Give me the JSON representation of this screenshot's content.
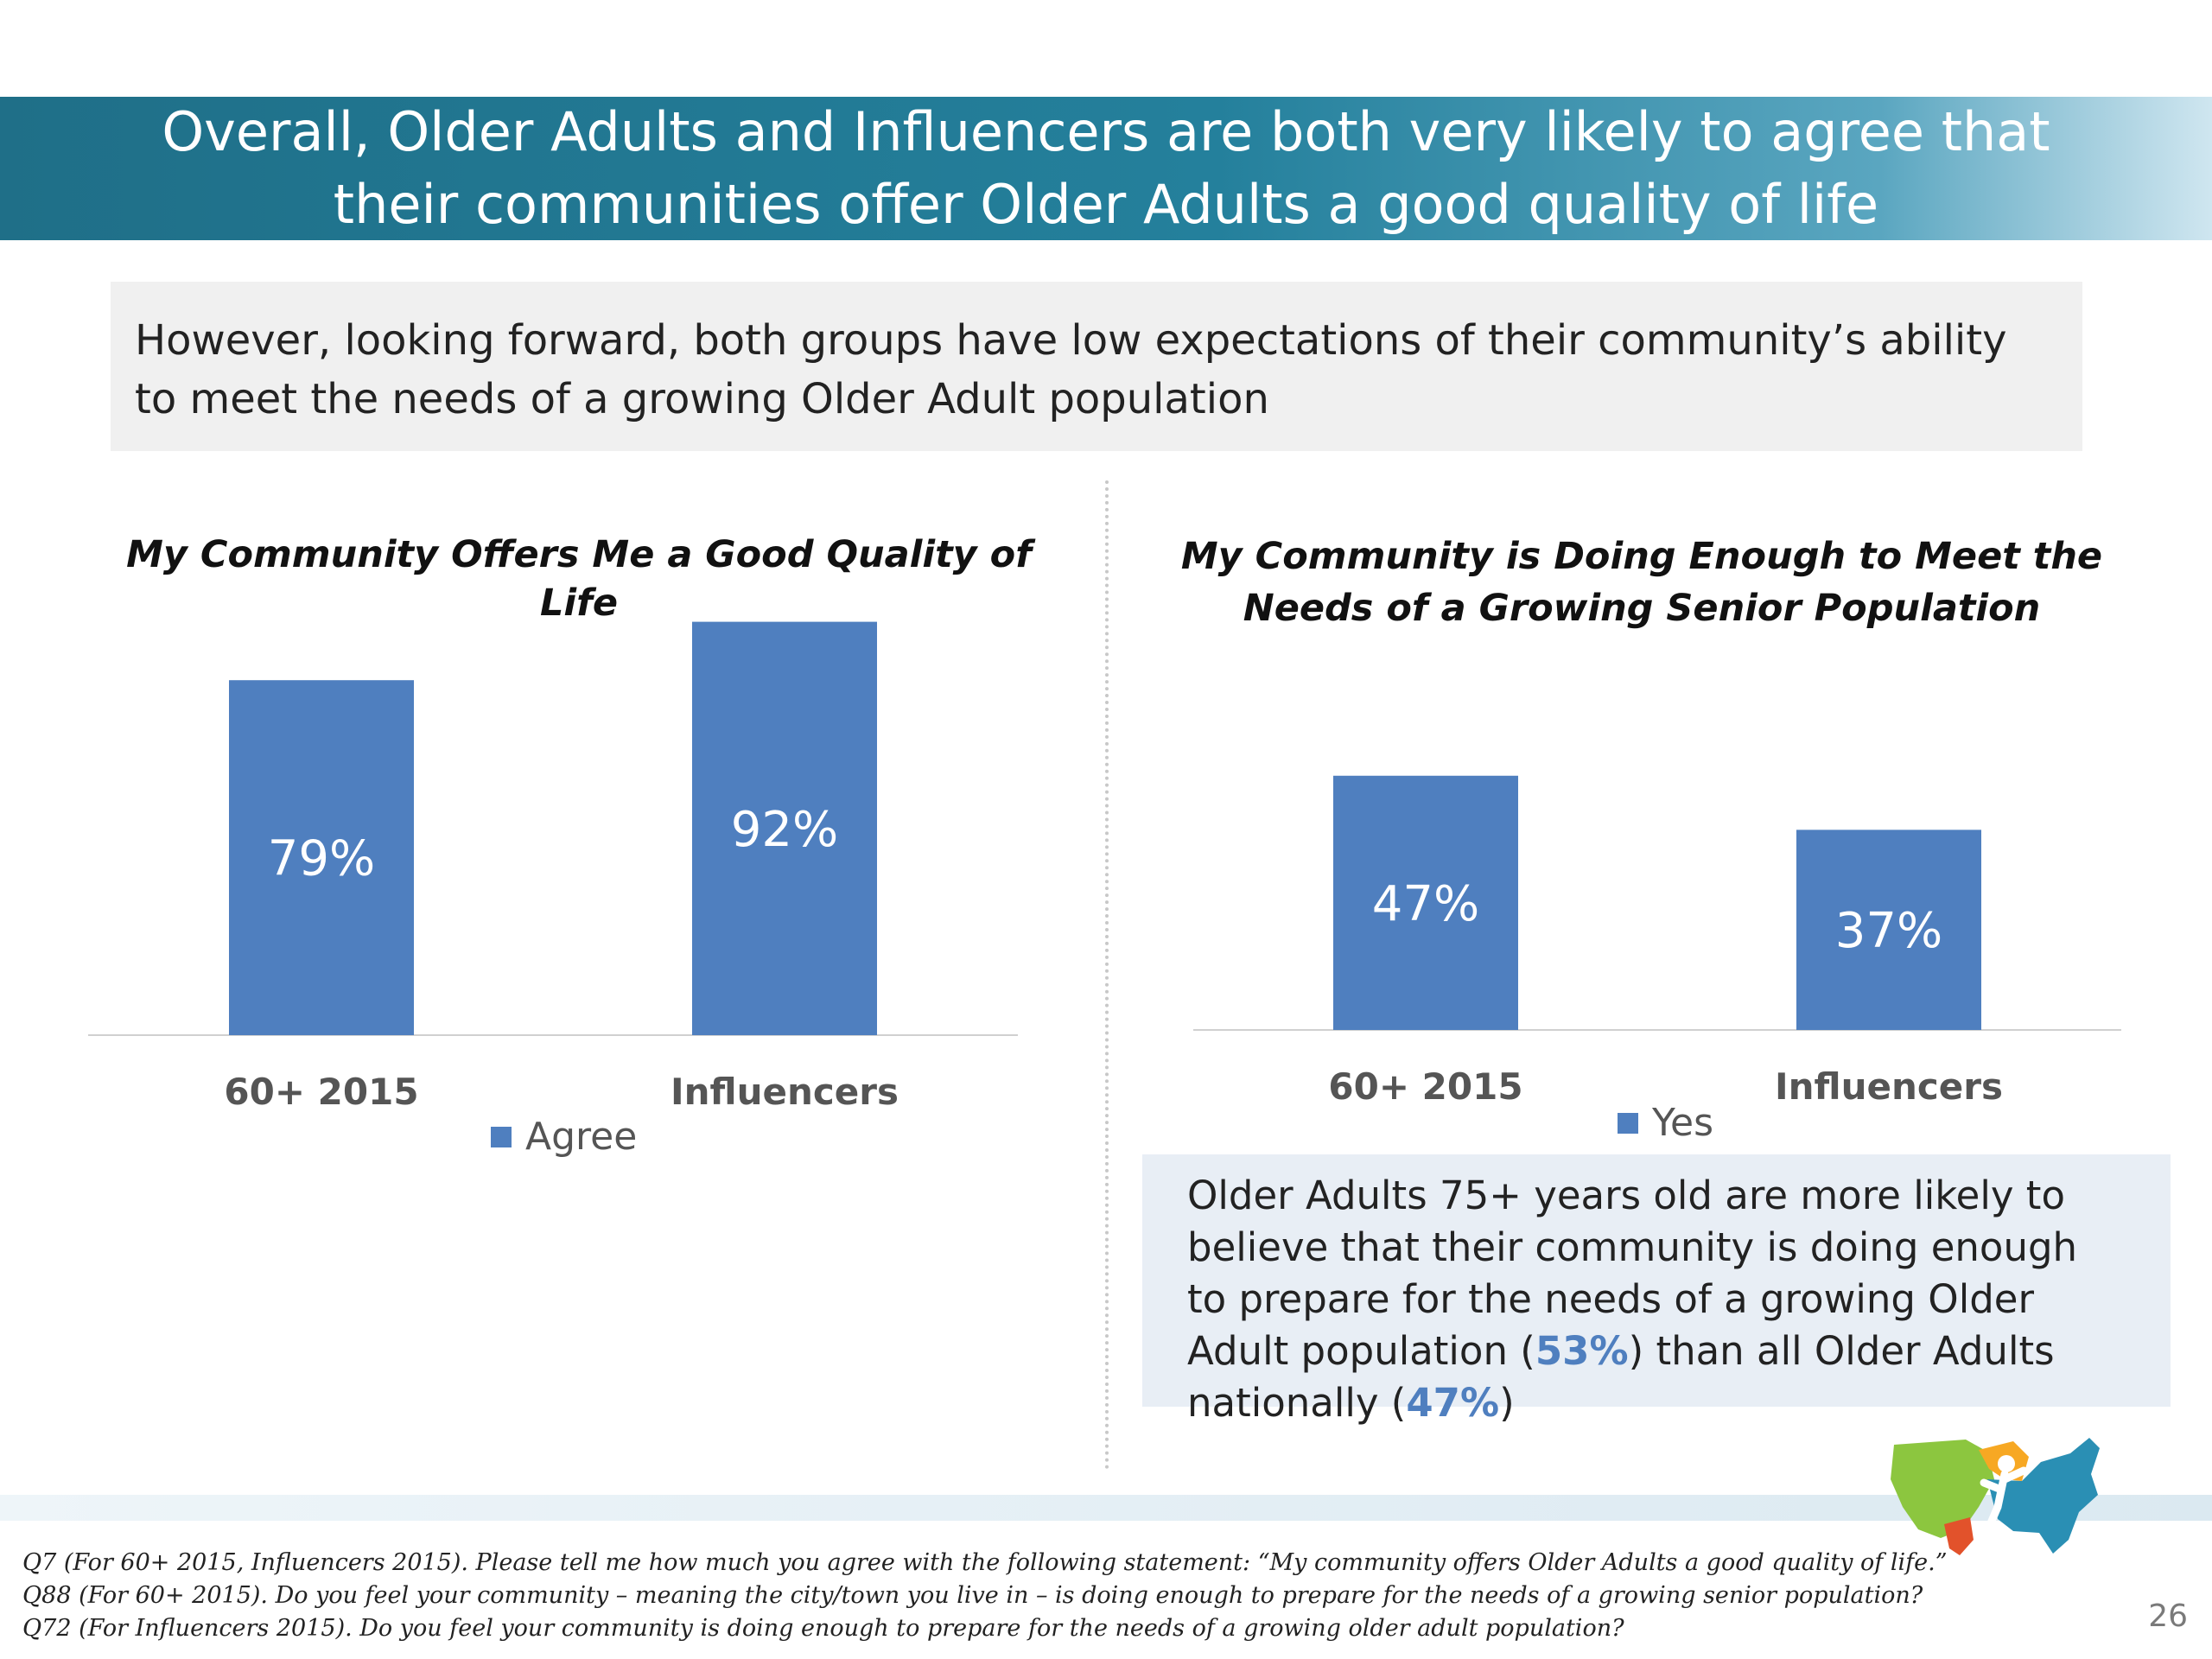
{
  "header": {
    "title": "Overall, Older Adults and Influencers are both very likely to agree that their communities offer Older Adults a good quality of life"
  },
  "subtitle": "However, looking forward, both groups have low expectations of their community’s ability to meet the needs of a growing Older Adult population",
  "colors": {
    "bar": "#4f7fbf",
    "title_bar": "#1f6f88",
    "highlight": "#4f7fbf"
  },
  "chart_data": [
    {
      "type": "bar",
      "title": "My Community Offers Me a Good Quality of Life",
      "categories": [
        "60+ 2015",
        "Influencers"
      ],
      "series": [
        {
          "name": "Agree",
          "values": [
            79,
            92
          ]
        }
      ],
      "data_labels": [
        "79%",
        "92%"
      ],
      "ylim": [
        0,
        100
      ],
      "grid": false,
      "legend": "bottom"
    },
    {
      "type": "bar",
      "title": "My Community is Doing Enough to Meet the Needs of a Growing Senior Population",
      "categories": [
        "60+ 2015",
        "Influencers"
      ],
      "series": [
        {
          "name": "Yes",
          "values": [
            47,
            37
          ]
        }
      ],
      "data_labels": [
        "47%",
        "37%"
      ],
      "ylim": [
        0,
        100
      ],
      "grid": false,
      "legend": "bottom"
    }
  ],
  "callout": {
    "text_before": "Older Adults 75+ years old are more likely to believe that their community is doing enough to prepare for the needs of a growing Older Adult population (",
    "value_1": "53%",
    "text_middle": ") than all Older Adults nationally (",
    "value_2": "47%",
    "text_after": ")"
  },
  "footnotes": [
    "Q7 (For 60+ 2015, Influencers 2015). Please tell me how much you agree with the following statement: “My community offers Older Adults a good quality of life.”",
    "Q88 (For 60+ 2015). Do you feel your community – meaning the city/town you live in – is doing enough to prepare for the needs of a growing senior population?",
    "Q72 (For Influencers 2015). Do you feel your community is doing enough to prepare for the needs of a growing older adult population?"
  ],
  "page_number": "26",
  "logo_icon": "us-map-logo-icon"
}
